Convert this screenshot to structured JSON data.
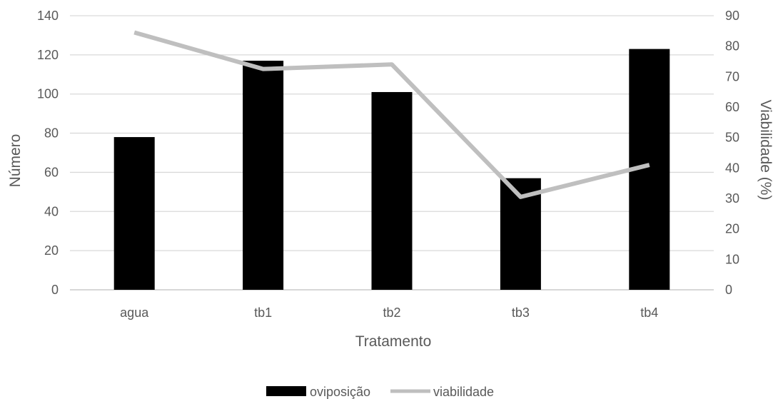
{
  "chart_data": {
    "type": "bar",
    "categories": [
      "agua",
      "tb1",
      "tb2",
      "tb3",
      "tb4"
    ],
    "series": [
      {
        "name": "oviposição",
        "type": "bar",
        "axis": "left",
        "color": "#000000",
        "values": [
          78,
          117,
          101,
          57,
          123
        ]
      },
      {
        "name": "viabilidade",
        "type": "line",
        "axis": "right",
        "color": "#bfbfbf",
        "values": [
          84.5,
          72.5,
          74,
          30.5,
          41
        ]
      }
    ],
    "xlabel": "Tratamento",
    "ylabel": "Número",
    "y2label": "Viabilidade (%)",
    "ylim": [
      0,
      140
    ],
    "y2lim": [
      0,
      90
    ],
    "yticks": [
      "0",
      "20",
      "40",
      "60",
      "80",
      "100",
      "120",
      "140"
    ],
    "y2ticks": [
      "0",
      "10",
      "20",
      "30",
      "40",
      "50",
      "60",
      "70",
      "80",
      "90"
    ],
    "grid": true,
    "legend_position": "bottom"
  }
}
